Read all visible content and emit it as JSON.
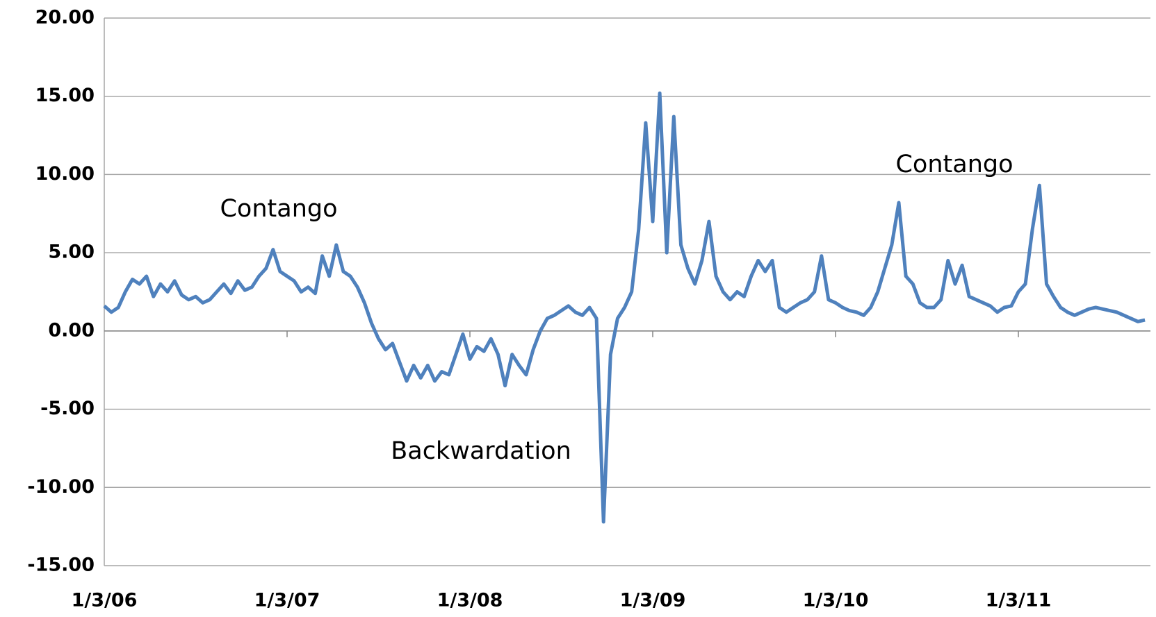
{
  "chart_data": {
    "type": "line",
    "color": "#4f81bd",
    "grid": true,
    "annotations": [
      "Contango",
      "Backwardation",
      "Contango"
    ],
    "categories": [
      "1/3/06",
      null,
      null,
      null,
      null,
      null,
      null,
      null,
      null,
      null,
      null,
      null,
      null,
      null,
      null,
      null,
      null,
      null,
      null,
      null,
      null,
      null,
      null,
      null,
      null,
      null,
      "1/3/07",
      null,
      null,
      null,
      null,
      null,
      null,
      null,
      null,
      null,
      null,
      null,
      null,
      null,
      null,
      null,
      null,
      null,
      null,
      null,
      null,
      null,
      null,
      null,
      null,
      null,
      "1/3/08",
      null,
      null,
      null,
      null,
      null,
      null,
      null,
      null,
      null,
      null,
      null,
      null,
      null,
      null,
      null,
      null,
      null,
      null,
      null,
      null,
      null,
      null,
      null,
      null,
      null,
      "1/3/09",
      null,
      null,
      null,
      null,
      null,
      null,
      null,
      null,
      null,
      null,
      null,
      null,
      null,
      null,
      null,
      null,
      null,
      null,
      null,
      null,
      null,
      null,
      null,
      null,
      null,
      "1/3/10",
      null,
      null,
      null,
      null,
      null,
      null,
      null,
      null,
      null,
      null,
      null,
      null,
      null,
      null,
      null,
      null,
      null,
      null,
      null,
      null,
      null,
      null,
      null,
      null,
      null,
      "1/3/11",
      null,
      null,
      null,
      null,
      null,
      null,
      null,
      null,
      null,
      null,
      null,
      null,
      null,
      null,
      null,
      null,
      null,
      null
    ],
    "values": [
      1.6,
      1.2,
      1.5,
      2.5,
      3.3,
      3.0,
      3.5,
      2.2,
      3.0,
      2.5,
      3.2,
      2.3,
      2.0,
      2.2,
      1.8,
      2.0,
      2.5,
      3.0,
      2.4,
      3.2,
      2.6,
      2.8,
      3.5,
      4.0,
      5.2,
      3.8,
      3.5,
      3.2,
      2.5,
      2.8,
      2.4,
      4.8,
      3.5,
      5.5,
      3.8,
      3.5,
      2.8,
      1.8,
      0.5,
      -0.5,
      -1.2,
      -0.8,
      -2.0,
      -3.2,
      -2.2,
      -3.0,
      -2.2,
      -3.2,
      -2.6,
      -2.8,
      -1.5,
      -0.2,
      -1.8,
      -1.0,
      -1.3,
      -0.5,
      -1.5,
      -3.5,
      -1.5,
      -2.2,
      -2.8,
      -1.2,
      0.0,
      0.8,
      1.0,
      1.3,
      1.6,
      1.2,
      1.0,
      1.5,
      0.8,
      -12.2,
      -1.5,
      0.8,
      1.5,
      2.5,
      6.5,
      13.3,
      7.0,
      15.2,
      5.0,
      13.7,
      5.5,
      4.0,
      3.0,
      4.5,
      7.0,
      3.5,
      2.5,
      2.0,
      2.5,
      2.2,
      3.5,
      4.5,
      3.8,
      4.5,
      1.5,
      1.2,
      1.5,
      1.8,
      2.0,
      2.5,
      4.8,
      2.0,
      1.8,
      1.5,
      1.3,
      1.2,
      1.0,
      1.5,
      2.5,
      4.0,
      5.5,
      8.2,
      3.5,
      3.0,
      1.8,
      1.5,
      1.5,
      2.0,
      4.5,
      3.0,
      4.2,
      2.2,
      2.0,
      1.8,
      1.6,
      1.2,
      1.5,
      1.6,
      2.5,
      3.0,
      6.5,
      9.3,
      3.0,
      2.2,
      1.5,
      1.2,
      1.0,
      1.2,
      1.4,
      1.5,
      1.4,
      1.3,
      1.2,
      1.0,
      0.8,
      0.6,
      0.7
    ],
    "ylim": [
      -15,
      20
    ],
    "yticks": [
      {
        "value": -15,
        "label": "-15.00"
      },
      {
        "value": -10,
        "label": "-10.00"
      },
      {
        "value": -5,
        "label": "-5.00"
      },
      {
        "value": 0,
        "label": "0.00"
      },
      {
        "value": 5,
        "label": "5.00"
      },
      {
        "value": 10,
        "label": "10.00"
      },
      {
        "value": 15,
        "label": "15.00"
      },
      {
        "value": 20,
        "label": "20.00"
      }
    ]
  }
}
